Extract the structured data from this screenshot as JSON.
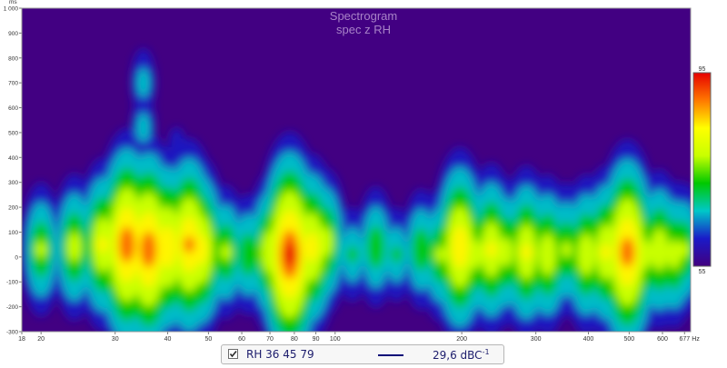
{
  "chart_data": {
    "type": "heatmap",
    "title": "Spectrogram",
    "subtitle": "spec z RH",
    "x_unit": "Hz",
    "y_unit": "ms",
    "x_scale": "log",
    "x_range": [
      18,
      700
    ],
    "y_range": [
      -300,
      1000
    ],
    "x_ticks": [
      {
        "value": 18,
        "label": "18"
      },
      {
        "value": 20,
        "label": "20"
      },
      {
        "value": 30,
        "label": "30"
      },
      {
        "value": 40,
        "label": "40"
      },
      {
        "value": 50,
        "label": "50"
      },
      {
        "value": 60,
        "label": "60"
      },
      {
        "value": 70,
        "label": "70"
      },
      {
        "value": 80,
        "label": "80"
      },
      {
        "value": 90,
        "label": "90"
      },
      {
        "value": 100,
        "label": "100"
      },
      {
        "value": 200,
        "label": "200"
      },
      {
        "value": 300,
        "label": "300"
      },
      {
        "value": 400,
        "label": "400"
      },
      {
        "value": 500,
        "label": "500"
      },
      {
        "value": 600,
        "label": "600"
      },
      {
        "value": 677,
        "label": "677"
      }
    ],
    "y_ticks": [
      {
        "value": 1000,
        "label": "1 000"
      },
      {
        "value": 900,
        "label": "900"
      },
      {
        "value": 800,
        "label": "800"
      },
      {
        "value": 700,
        "label": "700"
      },
      {
        "value": 600,
        "label": "600"
      },
      {
        "value": 500,
        "label": "500"
      },
      {
        "value": 400,
        "label": "400"
      },
      {
        "value": 300,
        "label": "300"
      },
      {
        "value": 200,
        "label": "200"
      },
      {
        "value": 100,
        "label": "100"
      },
      {
        "value": 0,
        "label": "0"
      },
      {
        "value": -100,
        "label": "-100"
      },
      {
        "value": -200,
        "label": "-200"
      },
      {
        "value": -300,
        "label": "-300"
      }
    ],
    "color_scale": {
      "min": 55,
      "max": 95,
      "min_label": "55",
      "max_label": "95",
      "colors": [
        "#42007e",
        "#1a1ac8",
        "#00c8c8",
        "#00c800",
        "#c8ff00",
        "#ffff00",
        "#ff7800",
        "#e60000"
      ]
    },
    "background_color": "#420082",
    "hotspots": [
      {
        "x": 20,
        "y": 30,
        "v": 78
      },
      {
        "x": 20,
        "y": -40,
        "v": 70
      },
      {
        "x": 24,
        "y": 40,
        "v": 80
      },
      {
        "x": 28,
        "y": 50,
        "v": 84
      },
      {
        "x": 32,
        "y": 50,
        "v": 93
      },
      {
        "x": 36,
        "y": 30,
        "v": 93
      },
      {
        "x": 40,
        "y": 40,
        "v": 88
      },
      {
        "x": 45,
        "y": 50,
        "v": 90
      },
      {
        "x": 48,
        "y": 30,
        "v": 86
      },
      {
        "x": 55,
        "y": 20,
        "v": 78
      },
      {
        "x": 62,
        "y": 10,
        "v": 76
      },
      {
        "x": 35,
        "y": 700,
        "v": 68
      },
      {
        "x": 35,
        "y": 520,
        "v": 68
      },
      {
        "x": 37,
        "y": 380,
        "v": 66
      },
      {
        "x": 34,
        "y": 250,
        "v": 72
      },
      {
        "x": 42,
        "y": 450,
        "v": 63
      },
      {
        "x": 46,
        "y": 330,
        "v": 66
      },
      {
        "x": 44,
        "y": 200,
        "v": 72
      },
      {
        "x": 78,
        "y": 10,
        "v": 95
      },
      {
        "x": 70,
        "y": 20,
        "v": 82
      },
      {
        "x": 88,
        "y": 40,
        "v": 86
      },
      {
        "x": 95,
        "y": 60,
        "v": 80
      },
      {
        "x": 98,
        "y": 200,
        "v": 67
      },
      {
        "x": 110,
        "y": 10,
        "v": 72
      },
      {
        "x": 125,
        "y": 40,
        "v": 76
      },
      {
        "x": 140,
        "y": 10,
        "v": 72
      },
      {
        "x": 160,
        "y": 30,
        "v": 76
      },
      {
        "x": 178,
        "y": 10,
        "v": 78
      },
      {
        "x": 198,
        "y": 40,
        "v": 88
      },
      {
        "x": 215,
        "y": 10,
        "v": 80
      },
      {
        "x": 235,
        "y": 30,
        "v": 84
      },
      {
        "x": 255,
        "y": 20,
        "v": 80
      },
      {
        "x": 285,
        "y": 20,
        "v": 84
      },
      {
        "x": 320,
        "y": 10,
        "v": 82
      },
      {
        "x": 355,
        "y": 30,
        "v": 78
      },
      {
        "x": 395,
        "y": 10,
        "v": 82
      },
      {
        "x": 440,
        "y": 20,
        "v": 84
      },
      {
        "x": 495,
        "y": 20,
        "v": 92
      },
      {
        "x": 545,
        "y": 10,
        "v": 80
      },
      {
        "x": 590,
        "y": 30,
        "v": 82
      },
      {
        "x": 640,
        "y": 10,
        "v": 80
      },
      {
        "x": 675,
        "y": 30,
        "v": 78
      }
    ]
  },
  "legend": {
    "checked": true,
    "trace_name": "RH 36 45 79",
    "trace_color": "#0a0a78",
    "value_text": "29,6 dBC",
    "value_superscript": "-1"
  }
}
